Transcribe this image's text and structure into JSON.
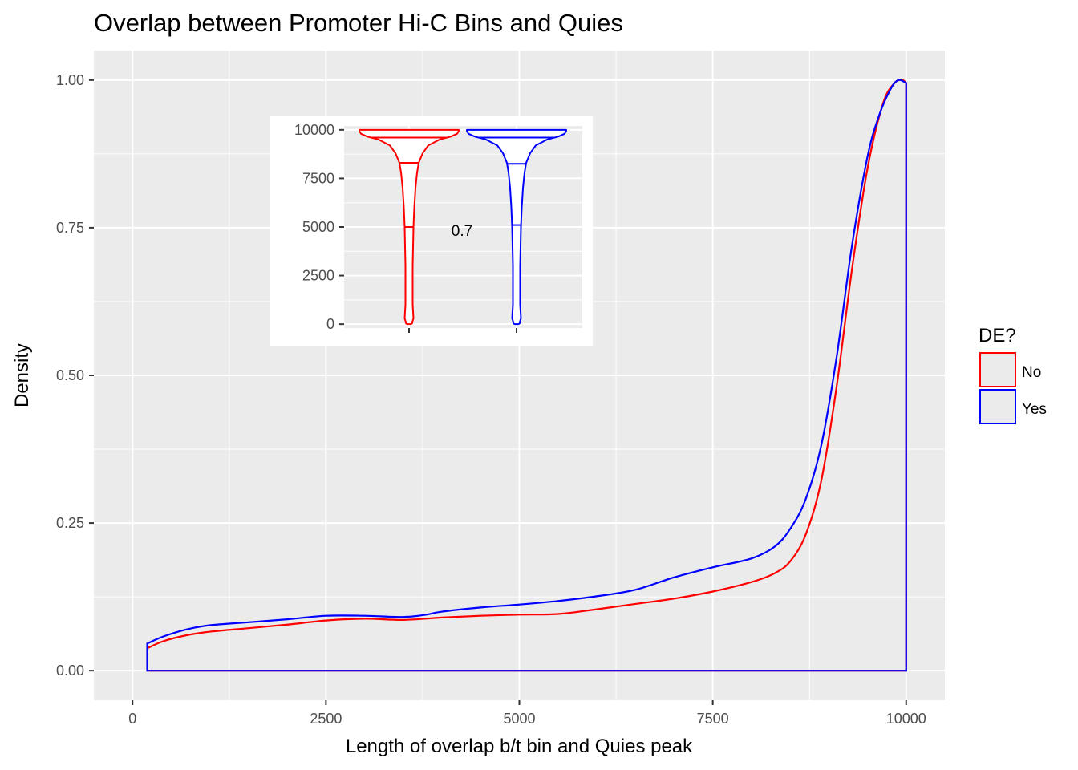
{
  "chart_data": [
    {
      "type": "line",
      "title": "Overlap between Promoter Hi-C Bins and Quies",
      "xlabel": "Length of overlap b/t bin and Quies peak",
      "ylabel": "Density",
      "xlim": [
        -500,
        10500
      ],
      "ylim": [
        -0.05,
        1.05
      ],
      "x_ticks": [
        0,
        2500,
        5000,
        7500,
        10000
      ],
      "x_tick_labels": [
        "0",
        "2500",
        "5000",
        "7500",
        "10000"
      ],
      "y_ticks": [
        0,
        0.25,
        0.5,
        0.75,
        1.0
      ],
      "y_tick_labels": [
        "0.00",
        "0.25",
        "0.50",
        "0.75",
        "1.00"
      ],
      "grid": true,
      "legend": {
        "title": "DE?",
        "position": "right",
        "entries": [
          {
            "label": "No",
            "color": "#ff0000"
          },
          {
            "label": "Yes",
            "color": "#0000ff"
          }
        ]
      },
      "series": [
        {
          "name": "No",
          "color": "#ff0000",
          "x": [
            190,
            400,
            700,
            1000,
            1500,
            2000,
            2500,
            3000,
            3500,
            4000,
            4500,
            5000,
            5500,
            6000,
            6500,
            7000,
            7500,
            8000,
            8300,
            8500,
            8700,
            8900,
            9100,
            9300,
            9500,
            9700,
            9850,
            9950,
            10000
          ],
          "values": [
            0.038,
            0.05,
            0.06,
            0.066,
            0.072,
            0.078,
            0.085,
            0.088,
            0.086,
            0.09,
            0.093,
            0.095,
            0.096,
            0.104,
            0.113,
            0.122,
            0.134,
            0.15,
            0.165,
            0.185,
            0.23,
            0.32,
            0.48,
            0.68,
            0.85,
            0.96,
            0.995,
            1.0,
            0.995
          ]
        },
        {
          "name": "Yes",
          "color": "#0000ff",
          "x": [
            190,
            400,
            700,
            1000,
            1500,
            2000,
            2500,
            3000,
            3500,
            3800,
            4000,
            4500,
            5000,
            5500,
            6000,
            6500,
            7000,
            7500,
            8000,
            8300,
            8500,
            8700,
            8900,
            9100,
            9300,
            9500,
            9650,
            9800,
            9900,
            10000
          ],
          "values": [
            0.046,
            0.058,
            0.07,
            0.077,
            0.082,
            0.087,
            0.093,
            0.093,
            0.091,
            0.095,
            0.1,
            0.107,
            0.112,
            0.118,
            0.126,
            0.137,
            0.158,
            0.175,
            0.19,
            0.21,
            0.24,
            0.29,
            0.38,
            0.53,
            0.72,
            0.87,
            0.94,
            0.985,
            1.0,
            0.995
          ]
        }
      ]
    },
    {
      "type": "violin",
      "ylim": [
        -200,
        10200
      ],
      "y_ticks": [
        0,
        2500,
        5000,
        7500,
        10000
      ],
      "y_tick_labels": [
        "0",
        "2500",
        "5000",
        "7500",
        "10000"
      ],
      "annotation": "0.7",
      "groups": [
        {
          "name": "No",
          "color": "#ff0000",
          "quantiles": {
            "q25": 5000,
            "q50": 8300,
            "q75": 9600
          }
        },
        {
          "name": "Yes",
          "color": "#0000ff",
          "quantiles": {
            "q25": 5100,
            "q50": 8250,
            "q75": 9600
          }
        }
      ]
    }
  ]
}
